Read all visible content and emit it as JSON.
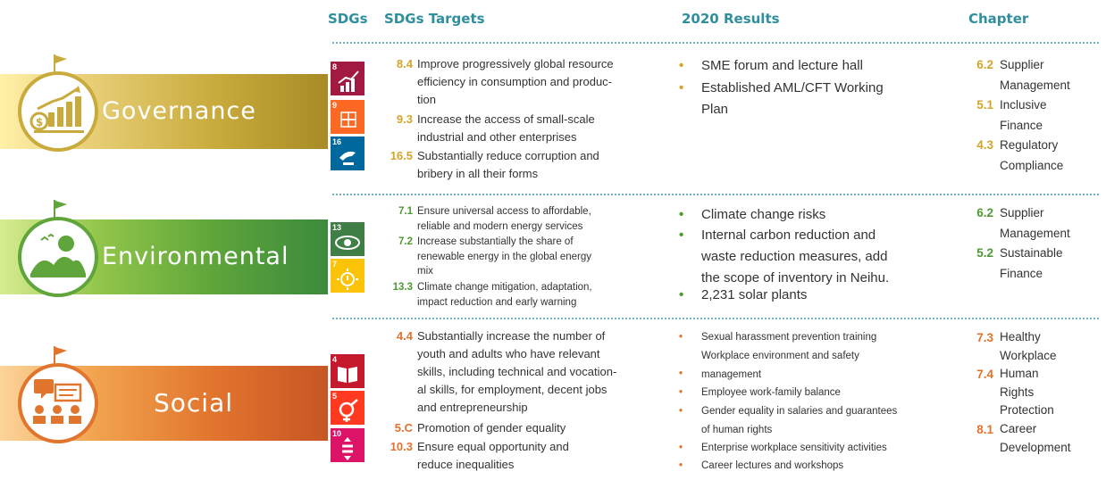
{
  "headers": {
    "sdgs": "SDGs",
    "targets": "SDGs Targets",
    "results": "2020 Results",
    "chapter": "Chapter"
  },
  "colors": {
    "governance": "#c9ab3d",
    "environmental": "#5fa53b",
    "social": "#e1752e",
    "header": "#2f8f9d"
  },
  "governance": {
    "title": "Governance",
    "sdg_icons": [
      {
        "number": "8",
        "color": "#a21942",
        "icon": "growth-chart-icon"
      },
      {
        "number": "9",
        "color": "#fd6925",
        "icon": "cubes-icon"
      },
      {
        "number": "16",
        "color": "#00689d",
        "icon": "dove-gavel-icon"
      }
    ],
    "targets": [
      {
        "code": "8.4",
        "lines": [
          "Improve progressively global resource",
          "efficiency in consumption and produc-",
          "tion"
        ]
      },
      {
        "code": "9.3",
        "lines": [
          "Increase the access of small-scale",
          "industrial and other enterprises"
        ]
      },
      {
        "code": "16.5",
        "lines": [
          "Substantially reduce corruption and",
          "bribery in all their forms"
        ]
      }
    ],
    "results": [
      {
        "lines": [
          "SME forum and lecture hall"
        ]
      },
      {
        "lines": [
          "Established AML/CFT Working",
          "Plan"
        ]
      }
    ],
    "chapters": [
      {
        "code": "6.2",
        "lines": [
          "Supplier",
          "Management"
        ]
      },
      {
        "code": "5.1",
        "lines": [
          "Inclusive",
          "Finance"
        ]
      },
      {
        "code": "4.3",
        "lines": [
          "Regulatory",
          "Compliance"
        ]
      }
    ]
  },
  "environmental": {
    "title": "Environmental",
    "sdg_icons": [
      {
        "number": "13",
        "color": "#3f7e44",
        "icon": "eye-globe-icon"
      },
      {
        "number": "7",
        "color": "#fcc30b",
        "icon": "sun-power-icon"
      }
    ],
    "targets": [
      {
        "code": "7.1",
        "lines": [
          "Ensure universal access to affordable,",
          "reliable and modern energy services"
        ]
      },
      {
        "code": "7.2",
        "lines": [
          "Increase substantially the share of",
          "renewable energy in the global energy",
          "mix"
        ]
      },
      {
        "code": "13.3",
        "lines": [
          "Climate change mitigation, adaptation,",
          "impact reduction and early warning"
        ]
      }
    ],
    "results": [
      {
        "lines": [
          "Climate change risks"
        ]
      },
      {
        "lines": [
          "Internal carbon reduction and",
          "waste reduction measures, add",
          "the scope of inventory in Neihu."
        ]
      },
      {
        "lines": [
          "2,231 solar plants"
        ]
      }
    ],
    "chapters": [
      {
        "code": "6.2",
        "lines": [
          "Supplier",
          "Management"
        ]
      },
      {
        "code": "5.2",
        "lines": [
          "Sustainable",
          "Finance"
        ]
      }
    ]
  },
  "social": {
    "title": "Social",
    "sdg_icons": [
      {
        "number": "4",
        "color": "#c5192d",
        "icon": "book-pencil-icon"
      },
      {
        "number": "5",
        "color": "#ff3a21",
        "icon": "gender-symbol-icon"
      },
      {
        "number": "10",
        "color": "#dd1367",
        "icon": "equality-icon"
      }
    ],
    "targets": [
      {
        "code": "4.4",
        "lines": [
          "Substantially increase the number of",
          "youth and adults who have relevant",
          "skills, including technical and vocation-",
          "al skills, for employment, decent jobs",
          "and entrepreneurship"
        ]
      },
      {
        "code": "5.C",
        "lines": [
          "Promotion of gender equality"
        ]
      },
      {
        "code": "10.3",
        "lines": [
          "Ensure equal opportunity and",
          "reduce inequalities"
        ]
      }
    ],
    "results": [
      {
        "lines": [
          "Sexual harassment prevention training"
        ]
      },
      {
        "lines": [
          "Workplace environment and safety",
          "management"
        ]
      },
      {
        "lines": [
          "Employee work-family balance"
        ]
      },
      {
        "lines": [
          "Gender equality in salaries and guarantees",
          "of human rights"
        ]
      },
      {
        "lines": [
          "Enterprise workplace sensitivity activities"
        ]
      },
      {
        "lines": [
          "Career lectures and workshops"
        ]
      }
    ],
    "chapters": [
      {
        "code": "7.3",
        "lines": [
          "Healthy",
          "Workplace"
        ]
      },
      {
        "code": "7.4",
        "lines": [
          "Human",
          "Rights",
          "Protection"
        ]
      },
      {
        "code": "8.1",
        "lines": [
          "Career",
          "Development"
        ]
      }
    ]
  }
}
